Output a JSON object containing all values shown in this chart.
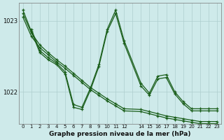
{
  "title": "Graphe pression niveau de la mer (hPa)",
  "bg_color": "#ceeaea",
  "grid_color": "#aecece",
  "line_color": "#1a5e1a",
  "xlim": [
    -0.5,
    23.5
  ],
  "ylim": [
    1021.55,
    1023.25
  ],
  "yticks": [
    1022.0,
    1023.0
  ],
  "xtick_labels": [
    "0",
    "1",
    "2",
    "3",
    "4",
    "5",
    "6",
    "7",
    "8",
    "9",
    "10",
    "11",
    "12",
    "",
    "14",
    "15",
    "16",
    "17",
    "18",
    "19",
    "20",
    "21",
    "22",
    "23"
  ],
  "series_jagged1": [
    1023.15,
    1022.85,
    1022.55,
    1022.45,
    1022.38,
    1022.25,
    1021.78,
    1021.75,
    1022.02,
    1022.35,
    1022.85,
    1023.1,
    1022.68,
    null,
    1022.08,
    1021.95,
    1022.18,
    1022.2,
    1021.97,
    1021.83,
    1021.73,
    1021.73,
    1021.73,
    1021.73
  ],
  "series_smooth1": [
    1023.05,
    1022.78,
    1022.62,
    1022.52,
    1022.42,
    1022.33,
    1022.23,
    1022.13,
    1022.03,
    1021.95,
    1021.87,
    1021.8,
    1021.73,
    null,
    1021.72,
    1021.69,
    1021.66,
    1021.63,
    1021.61,
    1021.59,
    1021.57,
    1021.55,
    1021.55,
    1021.55
  ],
  "series_smooth2": [
    1023.1,
    1022.83,
    1022.66,
    1022.55,
    1022.45,
    1022.36,
    1022.26,
    1022.16,
    1022.06,
    1021.98,
    1021.9,
    1021.83,
    1021.76,
    null,
    1021.75,
    1021.72,
    1021.69,
    1021.66,
    1021.64,
    1021.62,
    1021.6,
    1021.58,
    1021.58,
    1021.58
  ],
  "series_jagged2": [
    null,
    1022.88,
    1022.58,
    1022.48,
    1022.4,
    1022.28,
    1021.82,
    1021.78,
    1022.05,
    1022.38,
    1022.88,
    1023.15,
    1022.72,
    null,
    1022.12,
    1021.98,
    1022.22,
    1022.24,
    1022.0,
    1021.86,
    1021.76,
    1021.76,
    1021.76,
    1021.76
  ]
}
